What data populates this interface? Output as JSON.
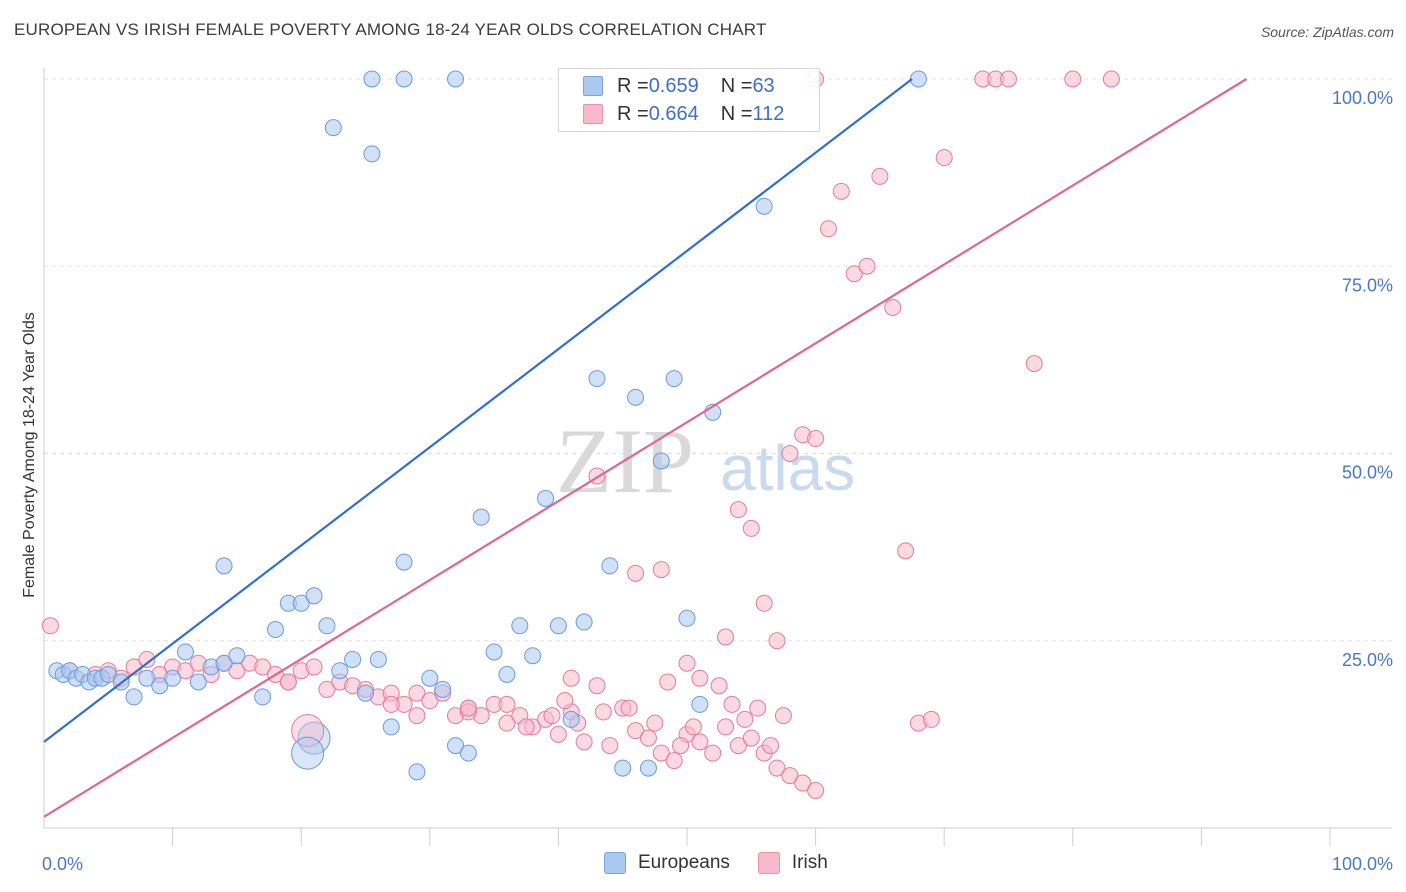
{
  "header": {
    "title": "EUROPEAN VS IRISH FEMALE POVERTY AMONG 18-24 YEAR OLDS CORRELATION CHART",
    "source": "Source: ZipAtlas.com"
  },
  "watermark": {
    "zip": "ZIP",
    "atlas": "atlas"
  },
  "legend": {
    "rows": [
      {
        "r_label": "R = ",
        "r_value": "0.659",
        "n_label": "N = ",
        "n_value": "63",
        "color": "#aac8f0",
        "border": "#7aa6e0"
      },
      {
        "r_label": "R = ",
        "r_value": "0.664",
        "n_label": "N = ",
        "n_value": "112",
        "color": "#f7b9cc",
        "border": "#ee8fab"
      }
    ]
  },
  "bottom_legend": {
    "europeans": "Europeans",
    "irish": "Irish"
  },
  "chart_data": {
    "type": "scatter",
    "title": "EUROPEAN VS IRISH FEMALE POVERTY AMONG 18-24 YEAR OLDS CORRELATION CHART",
    "xlabel": "",
    "ylabel": "Female Poverty Among 18-24 Year Olds",
    "xlim": [
      0,
      100
    ],
    "ylim": [
      0,
      100
    ],
    "x_ticks": [
      "0.0%",
      "100.0%"
    ],
    "y_ticks": [
      {
        "value": 25,
        "label": "25.0%"
      },
      {
        "value": 50,
        "label": "50.0%"
      },
      {
        "value": 75,
        "label": "75.0%"
      },
      {
        "value": 100,
        "label": "100.0%"
      }
    ],
    "grid": true,
    "legend_position": "top-center",
    "series": [
      {
        "name": "Europeans",
        "color": "#6a9be0",
        "fill": "#aac8f0",
        "R": 0.659,
        "N": 63,
        "trend": {
          "x": [
            0,
            67.5
          ],
          "y": [
            11.5,
            100
          ]
        },
        "points": [
          [
            1,
            21
          ],
          [
            1.5,
            20.5
          ],
          [
            2,
            21
          ],
          [
            2.5,
            20
          ],
          [
            3,
            20.5
          ],
          [
            3.5,
            19.5
          ],
          [
            4,
            20
          ],
          [
            4.5,
            20
          ],
          [
            5,
            20.5
          ],
          [
            6,
            19.5
          ],
          [
            7,
            17.5
          ],
          [
            8,
            20
          ],
          [
            9,
            19
          ],
          [
            10,
            20
          ],
          [
            11,
            23.5
          ],
          [
            12,
            19.5
          ],
          [
            13,
            21.5
          ],
          [
            14,
            22
          ],
          [
            15,
            23
          ],
          [
            17,
            17.5
          ],
          [
            18,
            26.5
          ],
          [
            19,
            30
          ],
          [
            20,
            30
          ],
          [
            21,
            31
          ],
          [
            22,
            27
          ],
          [
            23,
            21
          ],
          [
            24,
            22.5
          ],
          [
            25,
            18
          ],
          [
            26,
            22.5
          ],
          [
            27,
            13.5
          ],
          [
            28,
            35.5
          ],
          [
            29,
            7.5
          ],
          [
            30,
            20
          ],
          [
            31,
            18.5
          ],
          [
            32,
            11
          ],
          [
            33,
            10
          ],
          [
            34,
            41.5
          ],
          [
            35,
            23.5
          ],
          [
            36,
            20.5
          ],
          [
            37,
            27
          ],
          [
            38,
            23
          ],
          [
            39,
            44
          ],
          [
            40,
            27
          ],
          [
            41,
            14.5
          ],
          [
            42,
            27.5
          ],
          [
            43,
            60
          ],
          [
            44,
            35
          ],
          [
            45,
            8
          ],
          [
            46,
            57.5
          ],
          [
            47,
            8
          ],
          [
            48,
            49
          ],
          [
            49,
            60
          ],
          [
            50,
            28
          ],
          [
            51,
            16.5
          ],
          [
            52,
            55.5
          ],
          [
            14,
            35
          ],
          [
            22.5,
            93.5
          ],
          [
            25.5,
            100
          ],
          [
            28,
            100
          ],
          [
            32,
            100
          ],
          [
            25.5,
            90
          ],
          [
            56,
            83
          ],
          [
            68,
            100
          ]
        ]
      },
      {
        "name": "Irish",
        "color": "#e67a9c",
        "fill": "#f7b9cc",
        "R": 0.664,
        "N": 112,
        "trend": {
          "x": [
            0,
            93.5
          ],
          "y": [
            1.5,
            100
          ]
        },
        "points": [
          [
            0.5,
            27
          ],
          [
            2,
            21
          ],
          [
            4,
            20.5
          ],
          [
            5,
            21
          ],
          [
            6,
            20
          ],
          [
            7,
            21.5
          ],
          [
            8,
            22.5
          ],
          [
            9,
            20.5
          ],
          [
            10,
            21.5
          ],
          [
            11,
            21
          ],
          [
            12,
            22
          ],
          [
            13,
            20.5
          ],
          [
            14,
            22
          ],
          [
            15,
            21
          ],
          [
            16,
            22
          ],
          [
            17,
            21.5
          ],
          [
            18,
            20.5
          ],
          [
            19,
            19.5
          ],
          [
            20,
            21
          ],
          [
            21,
            21.5
          ],
          [
            22,
            18.5
          ],
          [
            23,
            19.5
          ],
          [
            24,
            19
          ],
          [
            25,
            18.5
          ],
          [
            26,
            17.5
          ],
          [
            27,
            18
          ],
          [
            28,
            16.5
          ],
          [
            29,
            18
          ],
          [
            30,
            17
          ],
          [
            31,
            18
          ],
          [
            32,
            15
          ],
          [
            33,
            16
          ],
          [
            34,
            15
          ],
          [
            35,
            16.5
          ],
          [
            36,
            14
          ],
          [
            37,
            15
          ],
          [
            38,
            13.5
          ],
          [
            39,
            14.5
          ],
          [
            40,
            12.5
          ],
          [
            41,
            15.5
          ],
          [
            42,
            11.5
          ],
          [
            43,
            19
          ],
          [
            44,
            11
          ],
          [
            45,
            16
          ],
          [
            46,
            13
          ],
          [
            47,
            12
          ],
          [
            48,
            10
          ],
          [
            49,
            9
          ],
          [
            50,
            12.5
          ],
          [
            51,
            11.5
          ],
          [
            52,
            10
          ],
          [
            53,
            13.5
          ],
          [
            54,
            11
          ],
          [
            55,
            12
          ],
          [
            56,
            10
          ],
          [
            57,
            8
          ],
          [
            58,
            7
          ],
          [
            59,
            6
          ],
          [
            60,
            5
          ],
          [
            19,
            19.5
          ],
          [
            27,
            16.5
          ],
          [
            29,
            15
          ],
          [
            33,
            15.5
          ],
          [
            36,
            16.5
          ],
          [
            37.5,
            13.5
          ],
          [
            39.5,
            15
          ],
          [
            40.5,
            17
          ],
          [
            41.5,
            14
          ],
          [
            43.5,
            15.5
          ],
          [
            45.5,
            16
          ],
          [
            47.5,
            14
          ],
          [
            48.5,
            19.5
          ],
          [
            49.5,
            11
          ],
          [
            50.5,
            13.5
          ],
          [
            52.5,
            19
          ],
          [
            53.5,
            16.5
          ],
          [
            54.5,
            14.5
          ],
          [
            55.5,
            16
          ],
          [
            56.5,
            11
          ],
          [
            57.5,
            15
          ],
          [
            33,
            16
          ],
          [
            41,
            20
          ],
          [
            43,
            47
          ],
          [
            46,
            34
          ],
          [
            48,
            34.5
          ],
          [
            50,
            22
          ],
          [
            51,
            20
          ],
          [
            53,
            25.5
          ],
          [
            54,
            42.5
          ],
          [
            55,
            40
          ],
          [
            56,
            30
          ],
          [
            57,
            25
          ],
          [
            58,
            50
          ],
          [
            59,
            52.5
          ],
          [
            60,
            52
          ],
          [
            61,
            80
          ],
          [
            62,
            85
          ],
          [
            63,
            74
          ],
          [
            64,
            75
          ],
          [
            65,
            87
          ],
          [
            66,
            69.5
          ],
          [
            67,
            37
          ],
          [
            68,
            14
          ],
          [
            69,
            14.5
          ],
          [
            70,
            89.5
          ],
          [
            73,
            100
          ],
          [
            74,
            100
          ],
          [
            75,
            100
          ],
          [
            77,
            62
          ],
          [
            80,
            100
          ],
          [
            83,
            100
          ],
          [
            60,
            100
          ]
        ]
      }
    ]
  }
}
